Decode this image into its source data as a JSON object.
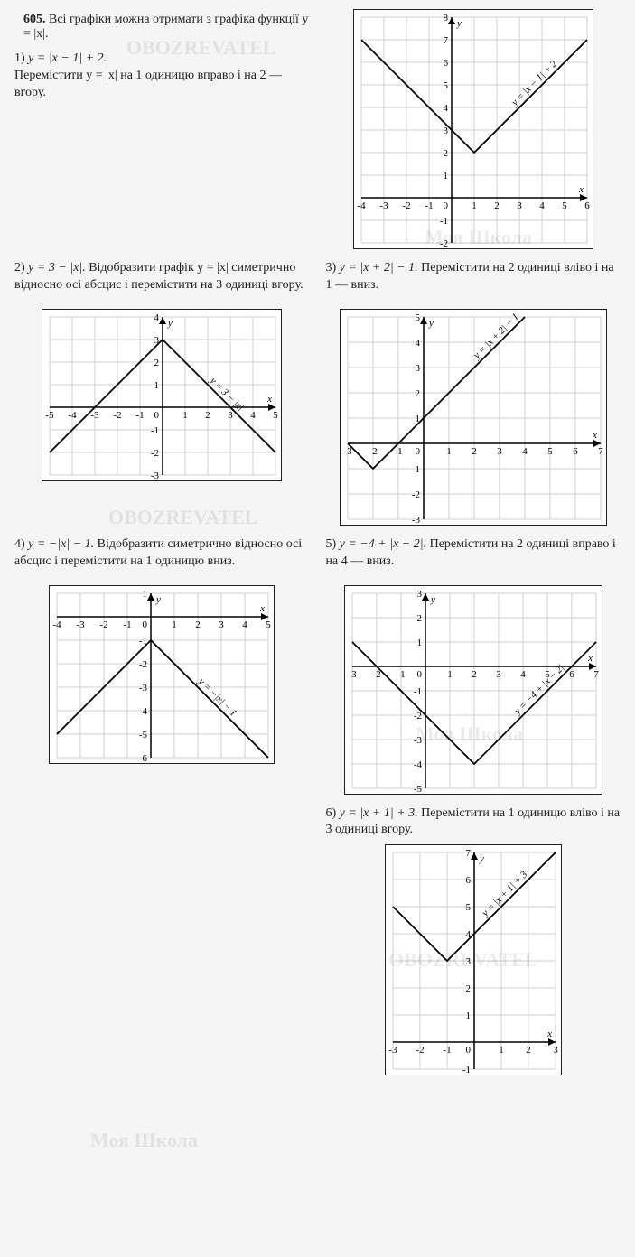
{
  "watermarks": [
    "OBOZREVATEL",
    "Моя Школа",
    "OBOZREVATEL",
    "Моя Школа",
    "OBOZREVATEL",
    "Моя Школа"
  ],
  "intro": {
    "number": "605.",
    "text": "Всі графіки можна отримати з графіка функції y = |x|."
  },
  "items": [
    {
      "label": "1)",
      "formula": "y = |x − 1| + 2.",
      "desc": "Перемістити y = |x| на 1 одиницю вправо і на 2 — вгору."
    },
    {
      "label": "2)",
      "formula": "y = 3 − |x|.",
      "desc": "Відобразити графік y = |x| симетрично відносно осі абсцис і перемістити на 3 одиниці вгору."
    },
    {
      "label": "3)",
      "formula": "y = |x + 2| − 1.",
      "desc": "Перемістити на 2 одиниці вліво і на 1 — вниз."
    },
    {
      "label": "4)",
      "formula": "y = −|x| − 1.",
      "desc": "Відобразити симетрично відносно осі абсцис і перемістити на 1 одиницю вниз."
    },
    {
      "label": "5)",
      "formula": "y = −4 + |x − 2|.",
      "desc": "Перемістити на 2 одиниці вправо і на 4 — вниз."
    },
    {
      "label": "6)",
      "formula": "y = |x + 1| + 3.",
      "desc": "Перемістити на 1 одиницю вліво і на 3 одиниці вгору."
    }
  ],
  "charts": {
    "c1": {
      "type": "line",
      "label": "y = |x − 1| + 2",
      "xlim": [
        -4,
        6
      ],
      "ylim": [
        -2,
        8
      ],
      "unit": 25,
      "xticks": [
        -4,
        -3,
        -2,
        -1,
        1,
        2,
        3,
        4,
        5,
        6
      ],
      "yticks": [
        -2,
        -1,
        1,
        2,
        3,
        4,
        5,
        6,
        7,
        8
      ],
      "vertex": [
        1,
        2
      ],
      "slope": 1,
      "open": "up",
      "grid_color": "#cfcfcf",
      "bg": "#ffffff",
      "line_color": "#000"
    },
    "c2": {
      "type": "line",
      "label": "y = 3 − |x|",
      "xlim": [
        -5,
        5
      ],
      "ylim": [
        -3,
        4
      ],
      "unit": 25,
      "xticks": [
        -5,
        -4,
        -3,
        -2,
        -1,
        1,
        2,
        3,
        4,
        5
      ],
      "yticks": [
        -3,
        -2,
        -1,
        1,
        2,
        3,
        4
      ],
      "vertex": [
        0,
        3
      ],
      "slope": 1,
      "open": "down",
      "grid_color": "#cfcfcf",
      "bg": "#ffffff",
      "line_color": "#000"
    },
    "c3": {
      "type": "line",
      "label": "y = |x + 2| − 1",
      "xlim": [
        -3,
        7
      ],
      "ylim": [
        -3,
        5
      ],
      "unit": 28,
      "xticks": [
        -3,
        -2,
        -1,
        1,
        2,
        3,
        4,
        5,
        6,
        7
      ],
      "yticks": [
        -3,
        -2,
        -1,
        1,
        2,
        3,
        4,
        5
      ],
      "vertex": [
        -2,
        -1
      ],
      "slope": 1,
      "open": "up",
      "grid_color": "#cfcfcf",
      "bg": "#ffffff",
      "line_color": "#000"
    },
    "c4": {
      "type": "line",
      "label": "y = −|x| − 1",
      "xlim": [
        -4,
        5
      ],
      "ylim": [
        -6,
        1
      ],
      "unit": 26,
      "xticks": [
        -4,
        -3,
        -2,
        -1,
        1,
        2,
        3,
        4,
        5
      ],
      "yticks": [
        -6,
        -5,
        -4,
        -3,
        -2,
        -1,
        1
      ],
      "vertex": [
        0,
        -1
      ],
      "slope": 1,
      "open": "down",
      "grid_color": "#cfcfcf",
      "bg": "#ffffff",
      "line_color": "#000"
    },
    "c5": {
      "type": "line",
      "label": "y = −4 + |x − 2|",
      "xlim": [
        -3,
        7
      ],
      "ylim": [
        -5,
        3
      ],
      "unit": 27,
      "xticks": [
        -3,
        -2,
        -1,
        1,
        2,
        3,
        4,
        5,
        6,
        7
      ],
      "yticks": [
        -5,
        -4,
        -3,
        -2,
        -1,
        1,
        2,
        3
      ],
      "vertex": [
        2,
        -4
      ],
      "slope": 1,
      "open": "up",
      "grid_color": "#cfcfcf",
      "bg": "#ffffff",
      "line_color": "#000"
    },
    "c6": {
      "type": "line",
      "label": "y = |x + 1| + 3",
      "xlim": [
        -3,
        3
      ],
      "ylim": [
        -1,
        7
      ],
      "unit": 30,
      "xticks": [
        -3,
        -2,
        -1,
        1,
        2,
        3
      ],
      "yticks": [
        -1,
        1,
        2,
        3,
        4,
        5,
        6,
        7
      ],
      "vertex": [
        -1,
        3
      ],
      "slope": 1,
      "open": "up",
      "grid_color": "#cfcfcf",
      "bg": "#ffffff",
      "line_color": "#000"
    }
  }
}
